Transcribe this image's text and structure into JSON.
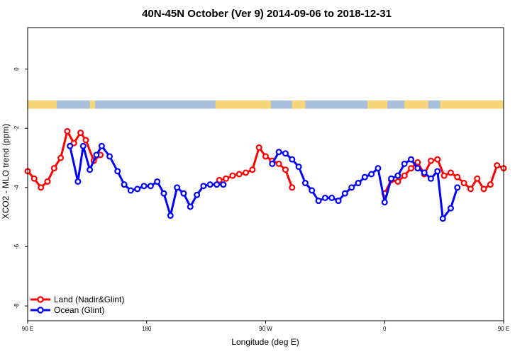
{
  "chart_data": {
    "type": "line",
    "title": "40N-45N October (Ver 9)   2014-09-06 to 2018-12-31",
    "xlabel": "Longitude (deg E)",
    "ylabel": "XCO2 - MLO trend (ppm)",
    "xlim": [
      90,
      450
    ],
    "ylim": [
      -8.5,
      1.4
    ],
    "x_ticks": [
      {
        "value": 90,
        "label": "90 E"
      },
      {
        "value": 180,
        "label": "180"
      },
      {
        "value": 270,
        "label": "90 W"
      },
      {
        "value": 360,
        "label": "0"
      },
      {
        "value": 450,
        "label": "90 E"
      },
      {
        "value": 540,
        "label": "180"
      }
    ],
    "x_ticks_note": "",
    "y_ticks": [
      {
        "value": 0,
        "label": "0"
      },
      {
        "value": -2,
        "label": "-2"
      },
      {
        "value": -4,
        "label": "-4"
      },
      {
        "value": -6,
        "label": "-6"
      },
      {
        "value": -8,
        "label": "-8"
      }
    ],
    "grid": false,
    "legend_position": "bottom-left",
    "land_ocean_strip": {
      "land_color": "#F5D67A",
      "ocean_color": "#A9BFDC",
      "land_segments": [
        [
          90,
          112
        ],
        [
          137,
          141
        ],
        [
          232,
          274
        ],
        [
          290,
          300
        ],
        [
          347,
          362
        ],
        [
          375,
          393
        ],
        [
          402,
          450
        ]
      ]
    },
    "series": [
      {
        "name": "Land (Nadir&Glint)",
        "color": "#FF0000",
        "segments": [
          [
            [
              90,
              -3.45
            ],
            [
              95,
              -3.7
            ],
            [
              100,
              -4.0
            ],
            [
              105,
              -3.8
            ],
            [
              110,
              -3.35
            ],
            [
              115,
              -3.0
            ],
            [
              120,
              -2.1
            ],
            [
              125,
              -2.5
            ],
            [
              130,
              -2.15
            ],
            [
              134,
              -2.4
            ],
            [
              140,
              -3.1
            ],
            [
              145,
              -2.9
            ]
          ],
          [
            [
              235,
              -3.75
            ],
            [
              240,
              -3.7
            ],
            [
              245,
              -3.6
            ],
            [
              250,
              -3.55
            ],
            [
              255,
              -3.5
            ],
            [
              260,
              -3.4
            ],
            [
              265,
              -2.65
            ],
            [
              270,
              -2.95
            ],
            [
              275,
              -3.1
            ],
            [
              280,
              -3.2
            ],
            [
              285,
              -3.4
            ],
            [
              290,
              -4.0
            ]
          ],
          [
            [
              360,
              -4.2
            ],
            [
              365,
              -3.75
            ],
            [
              370,
              -3.8
            ],
            [
              375,
              -3.6
            ],
            [
              380,
              -3.35
            ],
            [
              385,
              -3.15
            ],
            [
              390,
              -3.55
            ],
            [
              395,
              -3.1
            ],
            [
              400,
              -3.05
            ],
            [
              405,
              -3.6
            ],
            [
              410,
              -3.5
            ],
            [
              415,
              -3.65
            ],
            [
              420,
              -3.85
            ],
            [
              425,
              -4.05
            ],
            [
              430,
              -3.7
            ],
            [
              435,
              -4.05
            ],
            [
              440,
              -3.9
            ],
            [
              445,
              -3.25
            ],
            [
              450,
              -3.35
            ]
          ]
        ]
      },
      {
        "name": "Ocean (Glint)",
        "color": "#0000FF",
        "segments": [
          [
            [
              122,
              -2.6
            ],
            [
              128,
              -3.8
            ],
            [
              132,
              -2.6
            ],
            [
              137,
              -3.4
            ],
            [
              142,
              -2.9
            ],
            [
              146,
              -2.6
            ],
            [
              152,
              -2.95
            ],
            [
              158,
              -3.45
            ],
            [
              163,
              -3.9
            ],
            [
              168,
              -4.1
            ],
            [
              173,
              -4.05
            ],
            [
              178,
              -3.95
            ],
            [
              183,
              -3.95
            ],
            [
              188,
              -3.8
            ],
            [
              193,
              -4.2
            ],
            [
              198,
              -4.95
            ],
            [
              203,
              -4.0
            ],
            [
              208,
              -4.2
            ],
            [
              213,
              -4.65
            ],
            [
              218,
              -4.25
            ],
            [
              223,
              -3.95
            ],
            [
              228,
              -3.9
            ],
            [
              233,
              -3.9
            ],
            [
              238,
              -3.9
            ]
          ],
          [
            [
              275,
              -3.2
            ],
            [
              280,
              -2.8
            ],
            [
              285,
              -2.85
            ],
            [
              290,
              -3.05
            ],
            [
              295,
              -3.3
            ],
            [
              300,
              -3.85
            ],
            [
              305,
              -4.1
            ],
            [
              310,
              -4.45
            ],
            [
              315,
              -4.35
            ],
            [
              320,
              -4.35
            ],
            [
              325,
              -4.45
            ],
            [
              330,
              -4.2
            ],
            [
              335,
              -4.0
            ],
            [
              340,
              -3.85
            ],
            [
              345,
              -3.65
            ],
            [
              350,
              -3.55
            ],
            [
              355,
              -3.35
            ],
            [
              360,
              -4.5
            ],
            [
              365,
              -3.7
            ],
            [
              370,
              -3.6
            ],
            [
              375,
              -3.2
            ],
            [
              380,
              -3.05
            ],
            [
              385,
              -3.35
            ],
            [
              390,
              -3.5
            ],
            [
              395,
              -3.7
            ],
            [
              400,
              -3.45
            ],
            [
              404,
              -5.05
            ],
            [
              410,
              -4.7
            ],
            [
              415,
              -4.0
            ]
          ]
        ]
      }
    ]
  },
  "legend": {
    "items": [
      {
        "label": "Land (Nadir&Glint)",
        "color": "#FF0000"
      },
      {
        "label": "Ocean (Glint)",
        "color": "#0000FF"
      }
    ]
  }
}
